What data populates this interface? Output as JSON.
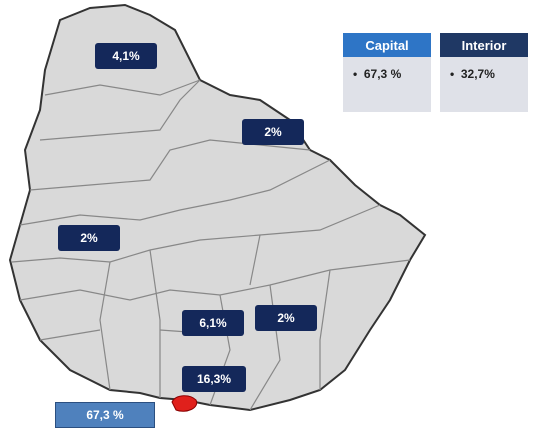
{
  "map": {
    "region_labels": [
      "4,1%",
      "2%",
      "2%",
      "6,1%",
      "2%",
      "16,3%"
    ],
    "capital_label": "67,3 %",
    "legend": [
      {
        "header": "Capital",
        "value": "67,3 %"
      },
      {
        "header": "Interior",
        "value": "32,7%"
      }
    ]
  }
}
